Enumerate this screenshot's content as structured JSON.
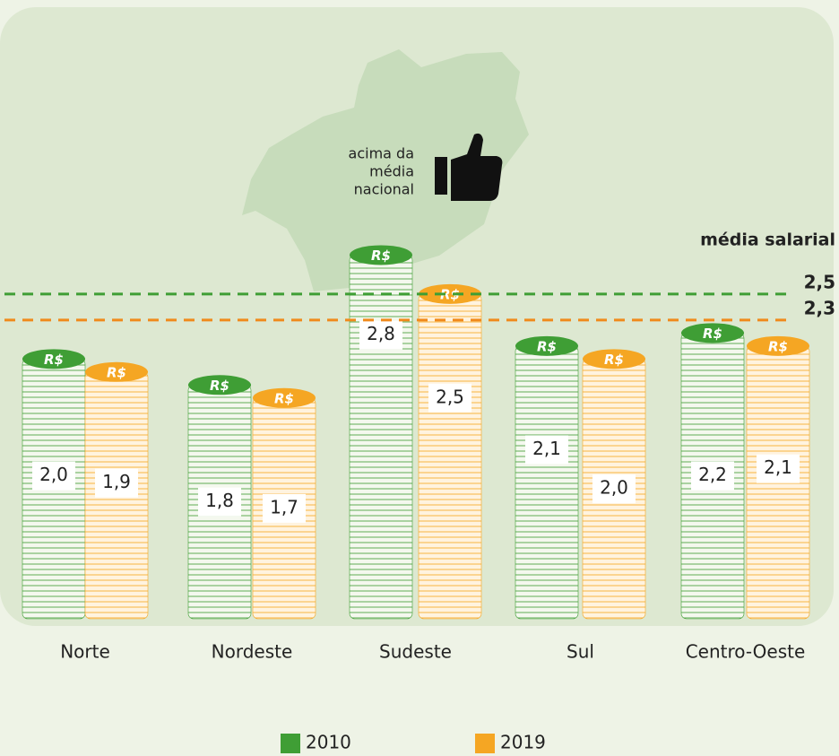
{
  "chart_data": {
    "type": "coin-bar",
    "categories": [
      "Norte",
      "Nordeste",
      "Sudeste",
      "Sul",
      "Centro-Oeste"
    ],
    "series": [
      {
        "name": "2010",
        "color": "#3f9e35",
        "values": [
          2.0,
          1.8,
          2.8,
          2.1,
          2.2
        ],
        "value_labels": [
          "2,0",
          "1,8",
          "2,8",
          "2,1",
          "2,2"
        ]
      },
      {
        "name": "2019",
        "color": "#f5a623",
        "values": [
          1.9,
          1.7,
          2.5,
          2.0,
          2.1
        ],
        "value_labels": [
          "1,9",
          "1,7",
          "2,5",
          "2,0",
          "2,1"
        ]
      }
    ],
    "ylim": [
      0,
      4.75
    ],
    "coin_label": "R$",
    "reference_title": "média salarial",
    "reference_lines": [
      {
        "value": 2.5,
        "label": "2,5",
        "color": "#3f9e35"
      },
      {
        "value": 2.3,
        "label": "2,3",
        "color": "#f08a1c"
      }
    ],
    "annotation": [
      "acima da",
      "média",
      "nacional"
    ]
  }
}
